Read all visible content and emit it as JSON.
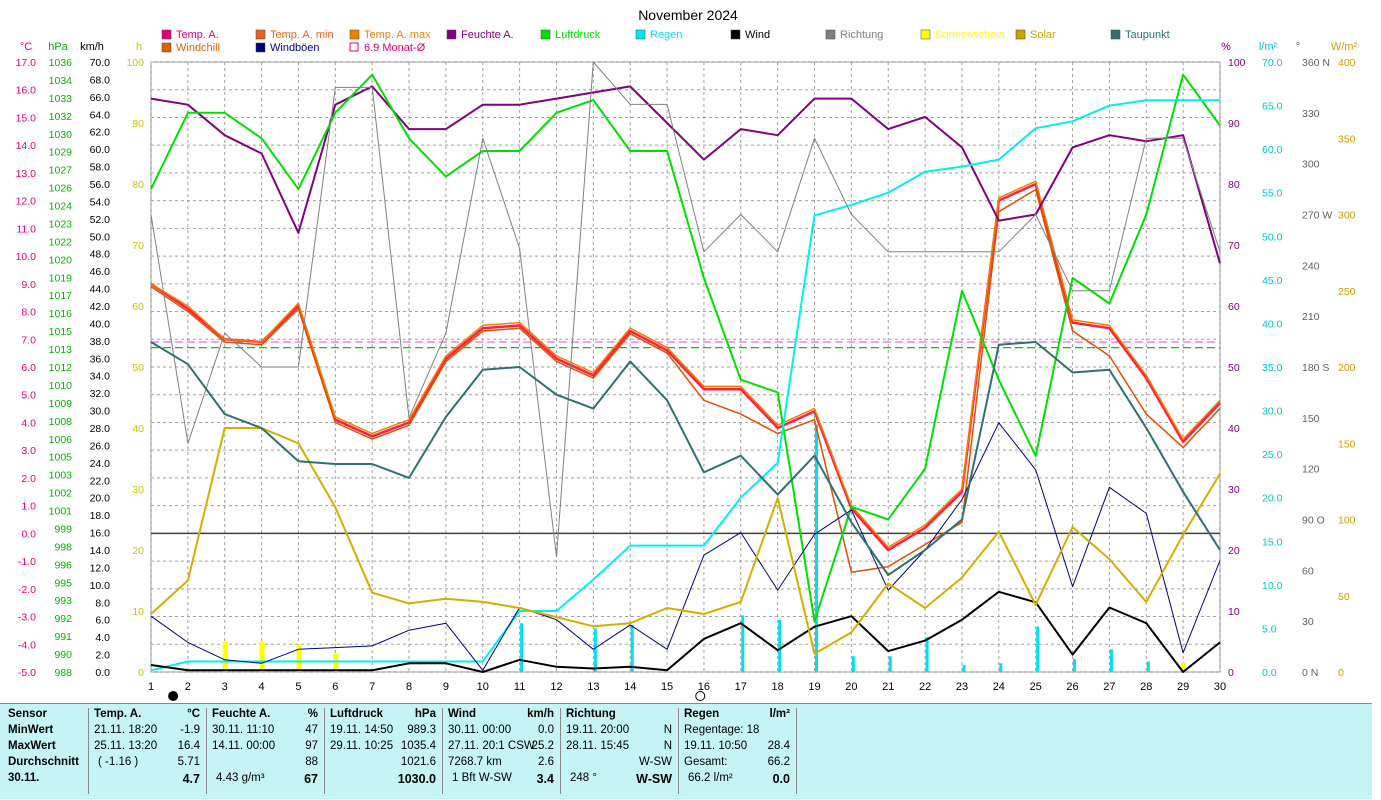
{
  "title": "November 2024",
  "chart_data": {
    "type": "line",
    "title": "November 2024",
    "x": [
      1,
      2,
      3,
      4,
      5,
      6,
      7,
      8,
      9,
      10,
      11,
      12,
      13,
      14,
      15,
      16,
      17,
      18,
      19,
      20,
      21,
      22,
      23,
      24,
      25,
      26,
      27,
      28,
      29,
      30
    ],
    "x_ticks": [
      "1",
      "2",
      "3",
      "4",
      "5",
      "6",
      "7",
      "8",
      "9",
      "10",
      "11",
      "12",
      "13",
      "14",
      "15",
      "16",
      "17",
      "18",
      "19",
      "20",
      "21",
      "22",
      "23",
      "24",
      "25",
      "26",
      "27",
      "28",
      "29",
      "30"
    ],
    "axes": {
      "temp": {
        "label": "°C",
        "color": "#e0007f",
        "ticks": [
          "17.0",
          "16.0",
          "15.0",
          "14.0",
          "13.0",
          "12.0",
          "11.0",
          "10.0",
          "9.0",
          "8.0",
          "7.0",
          "6.0",
          "5.0",
          "4.0",
          "3.0",
          "2.0",
          "1.0",
          "0.0",
          "-1.0",
          "-2.0",
          "-3.0",
          "-4.0",
          "-5.0"
        ],
        "range": [
          -5,
          17
        ]
      },
      "pressure": {
        "label": "hPa",
        "color": "#00b400",
        "ticks": [
          "1036",
          "1034",
          "1033",
          "1032",
          "1030",
          "1029",
          "1027",
          "1026",
          "1024",
          "1023",
          "1022",
          "1020",
          "1019",
          "1017",
          "1016",
          "1015",
          "1013",
          "1012",
          "1010",
          "1009",
          "1008",
          "1006",
          "1005",
          "1003",
          "1002",
          "1001",
          "999",
          "998",
          "996",
          "995",
          "993",
          "992",
          "991",
          "990",
          "988"
        ],
        "range": [
          988,
          1036
        ]
      },
      "wind": {
        "label": "km/h",
        "color": "#000000",
        "ticks": [
          "70.0",
          "68.0",
          "66.0",
          "64.0",
          "62.0",
          "60.0",
          "58.0",
          "56.0",
          "54.0",
          "52.0",
          "50.0",
          "48.0",
          "46.0",
          "44.0",
          "42.0",
          "40.0",
          "38.0",
          "36.0",
          "34.0",
          "32.0",
          "30.0",
          "28.0",
          "26.0",
          "24.0",
          "22.0",
          "20.0",
          "18.0",
          "16.0",
          "14.0",
          "12.0",
          "10.0",
          "8.0",
          "6.0",
          "4.0",
          "2.0",
          "0.0"
        ],
        "range": [
          0,
          70
        ]
      },
      "sun_hours": {
        "label": "h",
        "color": "#c8c800",
        "ticks": [
          "100",
          "90",
          "80",
          "70",
          "60",
          "50",
          "40",
          "30",
          "20",
          "10",
          "0"
        ],
        "range": [
          0,
          100
        ]
      },
      "humidity": {
        "label": "%",
        "color": "#800080",
        "ticks": [
          "100",
          "90",
          "80",
          "70",
          "60",
          "50",
          "40",
          "30",
          "20",
          "10",
          "0"
        ],
        "range": [
          0,
          100
        ]
      },
      "rain": {
        "label": "l/m²",
        "color": "#00c8c8",
        "ticks": [
          "70.0",
          "65.0",
          "60.0",
          "55.0",
          "50.0",
          "45.0",
          "40.0",
          "35.0",
          "30.0",
          "25.0",
          "20.0",
          "15.0",
          "10.0",
          "5.0",
          "0.0"
        ],
        "range": [
          0,
          70
        ]
      },
      "direction": {
        "label": "°",
        "color": "#606060",
        "ticks": [
          "360 N",
          "330",
          "300",
          "270 W",
          "240",
          "210",
          "180 S",
          "150",
          "120",
          "90 O",
          "60",
          "30",
          "0 N"
        ],
        "range": [
          0,
          360
        ]
      },
      "solar": {
        "label": "W/m²",
        "color": "#c8a000",
        "ticks": [
          "400",
          "350",
          "300",
          "250",
          "200",
          "150",
          "100",
          "50",
          "0"
        ],
        "range": [
          0,
          400
        ]
      }
    },
    "legend": [
      {
        "name": "Temp. A.",
        "color": "#e0007f",
        "box": "fill"
      },
      {
        "name": "Temp. A. min",
        "color": "#f06020",
        "box": "fill"
      },
      {
        "name": "Temp. A. max",
        "color": "#f08000",
        "box": "fill"
      },
      {
        "name": "Feuchte A.",
        "color": "#800080",
        "box": "fill"
      },
      {
        "name": "Luftdruck",
        "color": "#00e000",
        "box": "fill"
      },
      {
        "name": "Regen",
        "color": "#00e8f0",
        "box": "fill"
      },
      {
        "name": "Wind",
        "color": "#000000",
        "box": "fill"
      },
      {
        "name": "Richtung",
        "color": "#808080",
        "box": "fill"
      },
      {
        "name": "Sonnenschein",
        "color": "#ffff00",
        "box": "fill"
      },
      {
        "name": "Solar",
        "color": "#d0a000",
        "box": "fill"
      },
      {
        "name": "Taupunkt",
        "color": "#307070",
        "box": "fill"
      },
      {
        "name": "Windchill",
        "color": "#e06000",
        "box": "fill"
      },
      {
        "name": "Windböen",
        "color": "#000080",
        "box": "fill"
      },
      {
        "name": "6.9 Monat-Ø",
        "color": "#e0007f",
        "box": "outline"
      }
    ],
    "series": [
      {
        "name": "Temp. A.",
        "color": "#ff2040",
        "axis": "temp",
        "width": 2.5,
        "values": [
          9.0,
          8.1,
          7.0,
          6.9,
          8.2,
          4.1,
          3.5,
          4.0,
          6.3,
          7.4,
          7.5,
          6.3,
          5.7,
          7.3,
          6.6,
          5.2,
          5.2,
          3.8,
          4.4,
          0.9,
          -0.6,
          0.2,
          1.5,
          12.0,
          12.6,
          7.6,
          7.4,
          5.6,
          3.3,
          4.7
        ]
      },
      {
        "name": "Temp. A. min",
        "color": "#e05000",
        "axis": "temp",
        "width": 1.5,
        "values": [
          8.9,
          8.0,
          6.9,
          6.8,
          8.1,
          4.0,
          3.4,
          3.9,
          6.2,
          7.3,
          7.4,
          6.2,
          5.6,
          7.2,
          6.5,
          4.8,
          4.3,
          3.6,
          4.1,
          -1.4,
          -1.2,
          -0.4,
          0.4,
          11.6,
          12.4,
          7.3,
          6.4,
          4.3,
          3.1,
          4.5
        ]
      },
      {
        "name": "Temp. A. max",
        "color": "#f08000",
        "axis": "temp",
        "width": 1.5,
        "values": [
          9.0,
          8.2,
          7.0,
          6.9,
          8.3,
          4.2,
          3.6,
          4.1,
          6.4,
          7.5,
          7.6,
          6.4,
          5.8,
          7.4,
          6.7,
          5.3,
          5.3,
          3.9,
          4.5,
          1.0,
          -0.5,
          0.3,
          1.6,
          12.1,
          12.7,
          7.7,
          7.5,
          5.7,
          3.4,
          4.8
        ]
      },
      {
        "name": "Feuchte A.",
        "color": "#800080",
        "axis": "humidity",
        "width": 2,
        "values": [
          94,
          93,
          88,
          85,
          72,
          93,
          96,
          89,
          89,
          93,
          93,
          94,
          95,
          96,
          90,
          84,
          89,
          88,
          94,
          94,
          89,
          91,
          86,
          74,
          75,
          86,
          88,
          87,
          88,
          67
        ]
      },
      {
        "name": "Luftdruck",
        "color": "#00e000",
        "axis": "pressure",
        "width": 2,
        "values": [
          1026,
          1032,
          1032,
          1030,
          1026,
          1032,
          1035,
          1030,
          1027,
          1029,
          1029,
          1032,
          1033,
          1029,
          1029,
          1019,
          1011,
          1010,
          992,
          1001,
          1000,
          1004,
          1018,
          1011,
          1005,
          1019,
          1017,
          1024,
          1035,
          1031
        ]
      },
      {
        "name": "Regen",
        "color": "#00f0f0",
        "axis": "rain",
        "width": 2,
        "values": [
          0.2,
          1.2,
          1.2,
          1.2,
          1.2,
          1.2,
          1.2,
          1.2,
          1.2,
          1.2,
          7.0,
          7.0,
          10.6,
          14.5,
          14.5,
          14.5,
          20.0,
          24.0,
          52.4,
          53.6,
          55.0,
          57.4,
          58.0,
          58.8,
          62.4,
          63.2,
          65.0,
          65.6,
          65.6,
          65.6
        ]
      },
      {
        "name": "Wind",
        "color": "#000000",
        "axis": "wind",
        "width": 2,
        "values": [
          0.8,
          0.2,
          0.2,
          0.2,
          0.2,
          0.2,
          0.2,
          1.0,
          1.0,
          0.0,
          1.4,
          0.6,
          0.4,
          0.6,
          0.2,
          3.8,
          5.6,
          2.5,
          5.2,
          6.4,
          2.4,
          3.6,
          6.0,
          9.2,
          8.0,
          2.0,
          7.4,
          5.6,
          0.0,
          3.4
        ]
      },
      {
        "name": "Windböen",
        "color": "#000080",
        "axis": "wind",
        "width": 1,
        "values": [
          6.4,
          3.4,
          1.4,
          1.0,
          2.6,
          2.8,
          3.0,
          4.8,
          5.6,
          0.2,
          7.4,
          6.0,
          2.6,
          5.4,
          2.6,
          13.4,
          16.0,
          9.4,
          15.8,
          18.6,
          9.4,
          14.0,
          19.8,
          28.6,
          23.2,
          9.8,
          21.2,
          18.2,
          2.2,
          12.8
        ]
      },
      {
        "name": "Richtung",
        "color": "#808080",
        "axis": "direction",
        "width": 1,
        "values": [
          270,
          135,
          200,
          180,
          180,
          345,
          345,
          150,
          200,
          315,
          250,
          68,
          360,
          335,
          335,
          248,
          270,
          248,
          315,
          270,
          248,
          248,
          248,
          248,
          270,
          225,
          225,
          315,
          315,
          248
        ]
      },
      {
        "name": "Solar",
        "color": "#d0b000",
        "axis": "solar",
        "width": 2,
        "values": [
          38,
          60,
          160,
          160,
          150,
          108,
          52,
          45,
          48,
          46,
          42,
          36,
          30,
          32,
          42,
          38,
          46,
          114,
          12,
          26,
          58,
          42,
          62,
          92,
          44,
          95,
          74,
          46,
          90,
          130
        ]
      },
      {
        "name": "Taupunkt",
        "color": "#307070",
        "axis": "temp",
        "width": 2,
        "values": [
          6.9,
          6.1,
          4.3,
          3.8,
          2.6,
          2.5,
          2.5,
          2.0,
          4.2,
          5.9,
          6.0,
          5.0,
          4.5,
          6.2,
          4.8,
          2.2,
          2.8,
          1.4,
          2.8,
          0.4,
          -1.5,
          -0.6,
          0.5,
          6.8,
          6.9,
          5.8,
          5.9,
          3.8,
          1.5,
          -0.6
        ]
      }
    ],
    "sunshine_hours": [
      0,
      0,
      5,
      5,
      4.5,
      3,
      0,
      0,
      0,
      0,
      0,
      0,
      0,
      0,
      0,
      0,
      0,
      0,
      0,
      0,
      0,
      0,
      0,
      0,
      0,
      0,
      0,
      0,
      1.5,
      0
    ],
    "rain_daily": [
      0,
      0,
      0,
      0,
      0,
      0,
      0,
      0,
      0,
      0,
      5.6,
      0,
      5.0,
      5.4,
      0,
      0,
      6.5,
      6.0,
      28.4,
      1.8,
      1.8,
      4.0,
      0.8,
      1.0,
      5.2,
      1.5,
      2.6,
      1.2,
      0,
      0
    ],
    "reference_lines": [
      {
        "name": "6.9 Monat-Ø",
        "axis": "temp",
        "value": 6.9,
        "color": "#e060e0",
        "dash": true
      },
      {
        "name": "Luftdruck Monat-Ø",
        "axis": "temp",
        "value": 6.7,
        "color": "#00c800",
        "dash": true
      },
      {
        "name": "0 °C",
        "axis": "temp",
        "value": 0,
        "color": "#404040",
        "dash": false
      }
    ],
    "moon_phases": [
      {
        "day": 1.6,
        "phase": "new"
      },
      {
        "day": 15.9,
        "phase": "full"
      }
    ],
    "grid": true
  },
  "table": {
    "sensor": {
      "header": "Sensor",
      "rows": [
        "MinWert",
        "MaxWert",
        "Durchschnitt",
        "30.11."
      ]
    },
    "temp": {
      "header": "Temp. A.",
      "unit": "°C",
      "rows": [
        [
          "21.11.  18:20",
          "-1.9"
        ],
        [
          "25.11.  13:20",
          "16.4"
        ],
        [
          "( -1.16 )",
          "5.71"
        ],
        [
          "",
          "4.7"
        ]
      ]
    },
    "humidity": {
      "header": "Feuchte A.",
      "unit": "%",
      "rows": [
        [
          "30.11.  11:10",
          "47"
        ],
        [
          "14.11.  00:00",
          "97"
        ],
        [
          "",
          "88"
        ],
        [
          "4.43 g/m³",
          "67"
        ]
      ]
    },
    "pressure": {
      "header": "Luftdruck",
      "unit": "hPa",
      "rows": [
        [
          "19.11.  14:50",
          "989.3"
        ],
        [
          "29.11.  10:25",
          "1035.4"
        ],
        [
          "",
          "1021.6"
        ],
        [
          "",
          "1030.0"
        ]
      ]
    },
    "wind": {
      "header": "Wind",
      "unit": "km/h",
      "rows": [
        [
          "30.11.  00:00",
          "0.0"
        ],
        [
          "27.11.  20:1 CSW",
          "25.2"
        ],
        [
          "7268.7 km",
          "2.6"
        ],
        [
          "1 Bft  W-SW",
          "3.4"
        ]
      ]
    },
    "direction": {
      "header": "Richtung",
      "unit": "",
      "rows": [
        [
          "19.11.  20:00",
          "N"
        ],
        [
          "28.11.  15:45",
          "N"
        ],
        [
          "",
          "W-SW"
        ],
        [
          "248 °",
          "W-SW"
        ]
      ]
    },
    "rain": {
      "header": "Regen",
      "unit": "l/m²",
      "rows": [
        [
          "Regentage: 18",
          ""
        ],
        [
          "19.11.  10:50",
          "28.4"
        ],
        [
          "Gesamt:",
          "66.2"
        ],
        [
          "66.2 l/m²",
          "0.0"
        ]
      ]
    }
  }
}
